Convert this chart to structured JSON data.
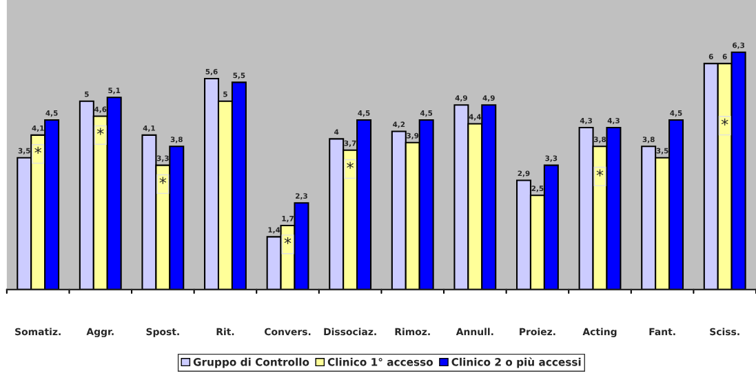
{
  "chart_data": {
    "type": "bar",
    "categories": [
      "Somatiz.",
      "Aggr.",
      "Spost.",
      "Rit.",
      "Convers.",
      "Dissociaz.",
      "Rimoz.",
      "Annull.",
      "Proiez.",
      "Acting",
      "Fant.",
      "Sciss."
    ],
    "series": [
      {
        "name": "Gruppo di Controllo",
        "color": "#ccccff",
        "values": [
          3.5,
          5,
          4.1,
          5.6,
          1.4,
          4,
          4.2,
          4.9,
          2.9,
          4.3,
          3.8,
          6
        ],
        "value_labels": [
          "3,5",
          "5",
          "4,1",
          "5,6",
          "1,4",
          "4",
          "4,2",
          "4,9",
          "2,9",
          "4,3",
          "3,8",
          "6"
        ]
      },
      {
        "name": "Clinico 1° accesso",
        "color": "#ffff99",
        "values": [
          4.1,
          4.6,
          3.3,
          5,
          1.7,
          3.7,
          3.9,
          4.4,
          2.5,
          3.8,
          3.5,
          6
        ],
        "value_labels": [
          "4,1",
          "4,6",
          "3,3",
          "5",
          "1,7",
          "3,7",
          "3,9",
          "4,4",
          "2,5",
          "3,8",
          "3,5",
          "6"
        ]
      },
      {
        "name": "Clinico 2 o più accessi",
        "color": "#0000ff",
        "values": [
          4.5,
          5.1,
          3.8,
          5.5,
          2.3,
          4.5,
          4.5,
          4.9,
          3.3,
          4.3,
          4.5,
          6.3
        ],
        "value_labels": [
          "4,5",
          "5,1",
          "3,8",
          "5,5",
          "2,3",
          "4,5",
          "4,5",
          "4,9",
          "3,3",
          "4,3",
          "4,5",
          "6,3"
        ]
      }
    ],
    "annotations": [
      {
        "text": "*",
        "x": "Somatiz.",
        "y": 3.6
      },
      {
        "text": "*",
        "x": "Aggr.",
        "y": 4.1
      },
      {
        "text": "*",
        "x": "Spost.",
        "y": 2.8
      },
      {
        "text": "*",
        "x": "Convers.",
        "y": 1.2
      },
      {
        "text": "*",
        "x": "Dissociaz.",
        "y": 3.2
      },
      {
        "text": "*",
        "x": "Acting",
        "y": 3.0
      },
      {
        "text": "*",
        "x": "Sciss.",
        "y": 4.35
      }
    ],
    "legend": "bottom",
    "grid": false
  }
}
